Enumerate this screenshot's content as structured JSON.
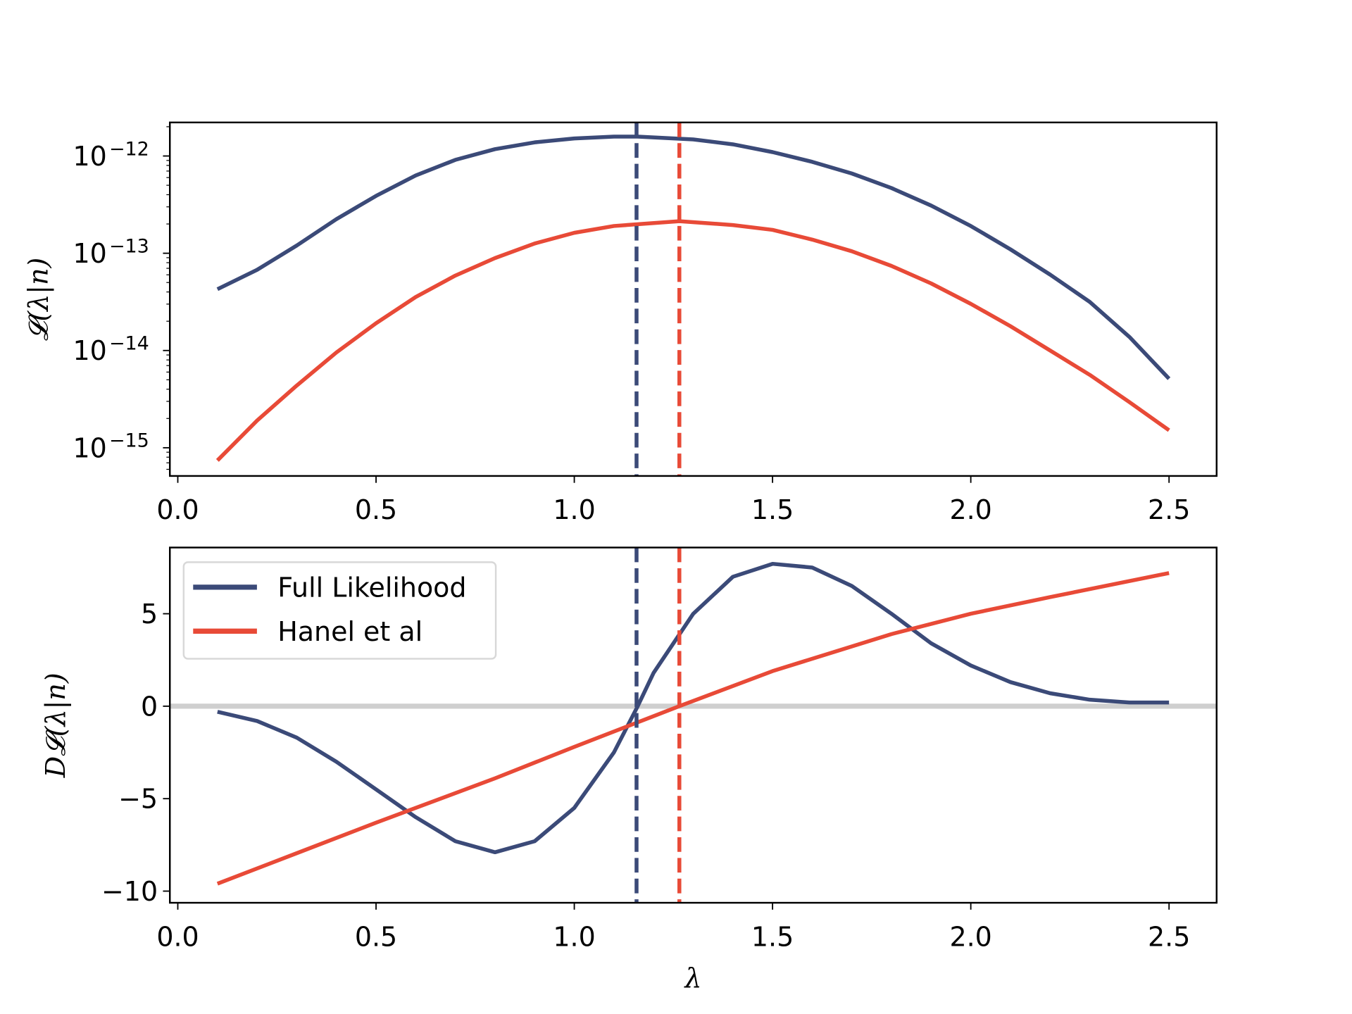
{
  "colors": {
    "full": "#3b4a78",
    "hanel": "#e84a37",
    "zero_line": "#cfcfcf"
  },
  "chart_data": [
    {
      "type": "line",
      "ylabel": "𝓛(λ|n)",
      "yscale": "log",
      "xlim": [
        -0.02,
        2.62
      ],
      "ylim_log10": [
        -15.29,
        -11.655
      ],
      "xticks": [
        "0.0",
        "0.5",
        "1.0",
        "1.5",
        "2.0",
        "2.5"
      ],
      "xtick_values": [
        0,
        0.5,
        1.0,
        1.5,
        2.0,
        2.5
      ],
      "yticks": [
        {
          "base": "10",
          "exp": "−12",
          "value": -12
        },
        {
          "base": "10",
          "exp": "−13",
          "value": -13
        },
        {
          "base": "10",
          "exp": "−14",
          "value": -14
        },
        {
          "base": "10",
          "exp": "−15",
          "value": -15
        }
      ],
      "vlines": [
        {
          "x": 1.157,
          "color": "full"
        },
        {
          "x": 1.265,
          "color": "hanel"
        }
      ],
      "series": [
        {
          "key": "full",
          "x": [
            0.1,
            0.2,
            0.3,
            0.4,
            0.5,
            0.6,
            0.7,
            0.8,
            0.9,
            1.0,
            1.1,
            1.16,
            1.3,
            1.4,
            1.5,
            1.6,
            1.7,
            1.8,
            1.9,
            2.0,
            2.1,
            2.2,
            2.3,
            2.4,
            2.5
          ],
          "log10_y": [
            -13.37,
            -13.17,
            -12.92,
            -12.65,
            -12.41,
            -12.2,
            -12.04,
            -11.93,
            -11.86,
            -11.82,
            -11.8,
            -11.8,
            -11.83,
            -11.88,
            -11.96,
            -12.06,
            -12.18,
            -12.33,
            -12.51,
            -12.72,
            -12.96,
            -13.22,
            -13.5,
            -13.86,
            -14.29
          ]
        },
        {
          "key": "hanel",
          "x": [
            0.1,
            0.2,
            0.3,
            0.4,
            0.5,
            0.6,
            0.7,
            0.8,
            0.9,
            1.0,
            1.1,
            1.265,
            1.4,
            1.5,
            1.6,
            1.7,
            1.8,
            1.9,
            2.0,
            2.1,
            2.2,
            2.3,
            2.4,
            2.5
          ],
          "log10_y": [
            -15.13,
            -14.72,
            -14.36,
            -14.02,
            -13.72,
            -13.45,
            -13.23,
            -13.05,
            -12.9,
            -12.79,
            -12.72,
            -12.67,
            -12.71,
            -12.76,
            -12.86,
            -12.98,
            -13.13,
            -13.31,
            -13.52,
            -13.75,
            -14.0,
            -14.25,
            -14.53,
            -14.82
          ]
        }
      ]
    },
    {
      "type": "line",
      "xlabel": "λ",
      "ylabel": "D𝓛(λ|n)",
      "xlim": [
        -0.02,
        2.62
      ],
      "ylim": [
        -10.63,
        8.58
      ],
      "xticks": [
        "0.0",
        "0.5",
        "1.0",
        "1.5",
        "2.0",
        "2.5"
      ],
      "xtick_values": [
        0,
        0.5,
        1.0,
        1.5,
        2.0,
        2.5
      ],
      "yticks": [
        "5",
        "0",
        "−5",
        "−10"
      ],
      "ytick_values": [
        5,
        0,
        -5,
        -10
      ],
      "hline": 0,
      "vlines": [
        {
          "x": 1.157,
          "color": "full"
        },
        {
          "x": 1.265,
          "color": "hanel"
        }
      ],
      "legend": {
        "placement": "upper-left",
        "entries": [
          "Full Likelihood",
          "Hanel et al"
        ]
      },
      "series": [
        {
          "key": "full",
          "name": "Full Likelihood",
          "x": [
            0.1,
            0.2,
            0.3,
            0.4,
            0.5,
            0.6,
            0.7,
            0.8,
            0.9,
            1.0,
            1.1,
            1.16,
            1.2,
            1.3,
            1.4,
            1.5,
            1.6,
            1.7,
            1.8,
            1.9,
            2.0,
            2.1,
            2.2,
            2.3,
            2.4,
            2.5
          ],
          "y": [
            -0.3,
            -0.8,
            -1.7,
            -3.0,
            -4.5,
            -6.0,
            -7.3,
            -7.9,
            -7.3,
            -5.5,
            -2.5,
            0,
            1.8,
            5.0,
            7.0,
            7.7,
            7.5,
            6.5,
            5.0,
            3.4,
            2.2,
            1.3,
            0.7,
            0.35,
            0.2,
            0.2
          ]
        },
        {
          "key": "hanel",
          "name": "Hanel et al",
          "x": [
            0.1,
            0.3,
            0.5,
            0.8,
            1.0,
            1.265,
            1.5,
            1.8,
            2.0,
            2.2,
            2.5
          ],
          "y": [
            -9.6,
            -7.95,
            -6.3,
            -3.9,
            -2.2,
            0,
            1.9,
            3.9,
            5.0,
            5.9,
            7.2
          ]
        }
      ]
    }
  ]
}
